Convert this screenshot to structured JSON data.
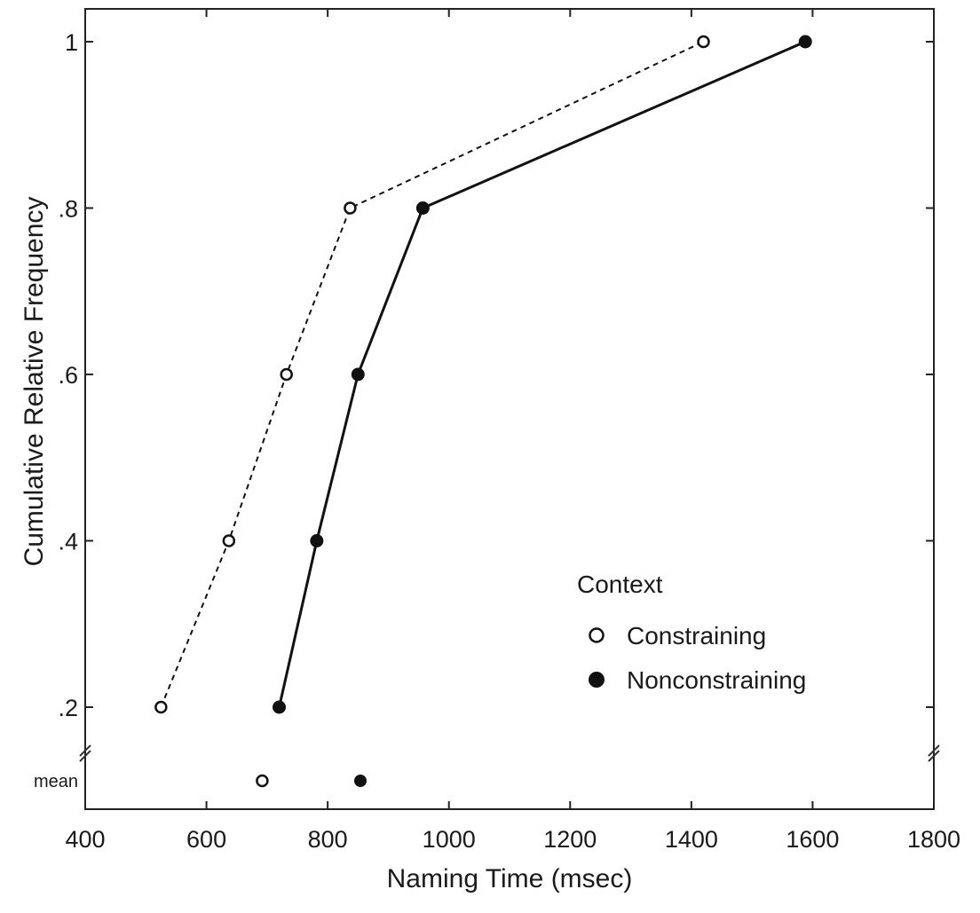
{
  "chart_data": {
    "type": "line",
    "title": "",
    "xlabel": "Naming Time (msec)",
    "ylabel": "Cumulative Relative Frequency",
    "xlim": [
      400,
      1800
    ],
    "x_ticks": [
      400,
      600,
      800,
      1000,
      1200,
      1400,
      1600,
      1800
    ],
    "x_tick_labels": [
      "400",
      "600",
      "800",
      "1000",
      "1200",
      "1400",
      "1600",
      "1800"
    ],
    "y_ticks": [
      0.2,
      0.4,
      0.6,
      0.8,
      1.0
    ],
    "y_tick_labels": [
      ".2",
      ".4",
      ".6",
      ".8",
      "1"
    ],
    "mean_label": "mean",
    "grid": false,
    "legend": {
      "title": "Context",
      "placement": "lower-right"
    },
    "series": [
      {
        "name": "Constraining",
        "marker": "open-circle",
        "line_style": "dashed",
        "color": "#111111",
        "points": [
          {
            "x": 525,
            "y": 0.2
          },
          {
            "x": 637,
            "y": 0.4
          },
          {
            "x": 732,
            "y": 0.6
          },
          {
            "x": 837,
            "y": 0.8
          },
          {
            "x": 1420,
            "y": 1.0
          }
        ],
        "mean": 692
      },
      {
        "name": "Nonconstraining",
        "marker": "filled-circle",
        "line_style": "solid",
        "color": "#111111",
        "points": [
          {
            "x": 720,
            "y": 0.2
          },
          {
            "x": 782,
            "y": 0.4
          },
          {
            "x": 850,
            "y": 0.6
          },
          {
            "x": 957,
            "y": 0.8
          },
          {
            "x": 1588,
            "y": 1.0
          }
        ],
        "mean": 854
      }
    ]
  }
}
